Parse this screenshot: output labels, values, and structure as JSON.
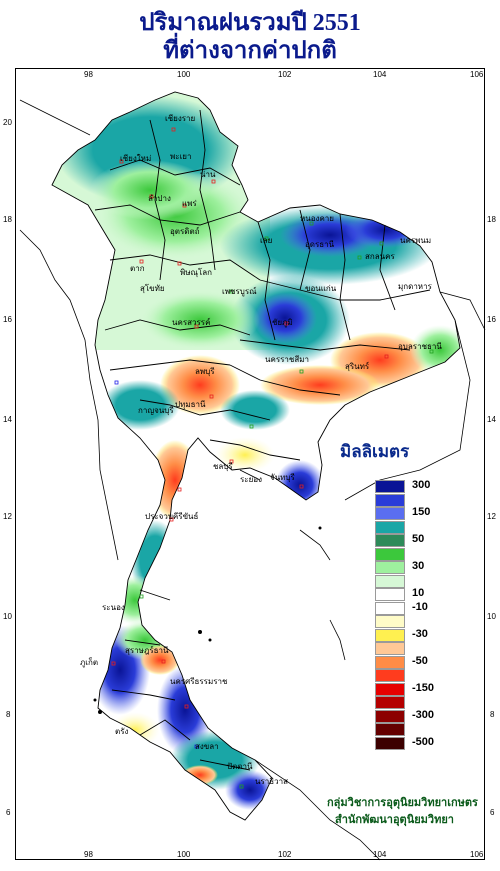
{
  "title": {
    "line1": "ปริมาณฝนรวมปี 2551",
    "line2": "ที่ต่างจากค่าปกติ"
  },
  "axes": {
    "longitude_top": [
      "98",
      "100",
      "102",
      "104",
      "106"
    ],
    "longitude_bottom": [
      "98",
      "100",
      "102",
      "104",
      "106"
    ],
    "latitude_left": [
      "20",
      "18",
      "16",
      "14",
      "12",
      "10",
      "8",
      "6"
    ],
    "latitude_right": [
      "18",
      "16",
      "14",
      "12",
      "10",
      "8",
      "6"
    ]
  },
  "legend": {
    "title": "มิลลิเมตร",
    "items": [
      {
        "label": "300",
        "color": "#0a1496"
      },
      {
        "label": "",
        "color": "#2a3cd8"
      },
      {
        "label": "150",
        "color": "#5a6ef0"
      },
      {
        "label": "",
        "color": "#1aa6a6"
      },
      {
        "label": "50",
        "color": "#2e8a5a"
      },
      {
        "label": "",
        "color": "#3cc83c"
      },
      {
        "label": "30",
        "color": "#9ef09e"
      },
      {
        "label": "",
        "color": "#d6f8d6"
      },
      {
        "label": "10",
        "color": "#ffffff"
      },
      {
        "label": "-10",
        "color": "#ffffff"
      },
      {
        "label": "",
        "color": "#fffcc8"
      },
      {
        "label": "-30",
        "color": "#fff050"
      },
      {
        "label": "",
        "color": "#ffc896"
      },
      {
        "label": "-50",
        "color": "#ff8c46"
      },
      {
        "label": "",
        "color": "#ff3c1e"
      },
      {
        "label": "-150",
        "color": "#e60000"
      },
      {
        "label": "",
        "color": "#b40000"
      },
      {
        "label": "-300",
        "color": "#8c0000"
      },
      {
        "label": "",
        "color": "#640000"
      },
      {
        "label": "-500",
        "color": "#3c0000"
      }
    ]
  },
  "credit": {
    "line1": "กลุ่มวิชาการอุตุนิยมวิทยาเกษตร",
    "line2": "สำนักพัฒนาอุตุนิยมวิทยา"
  },
  "places": [
    "เชียงใหม่",
    "เชียงราย",
    "พะเยา",
    "น่าน",
    "ลำปาง",
    "แพร่",
    "อุตรดิตถ์",
    "ตาก",
    "สุโขทัย",
    "พิษณุโลก",
    "เพชรบูรณ์",
    "นครสวรรค์",
    "หนองคาย",
    "อุดรธานี",
    "สกลนคร",
    "นครพนม",
    "เลย",
    "ขอนแก่น",
    "มุกดาหาร",
    "ชัยภูมิ",
    "นครราชสีมา",
    "สุรินทร์",
    "อุบลราชธานี",
    "ลพบุรี",
    "กาญจนบุรี",
    "ปทุมธานี",
    "ชลบุรี",
    "ระยอง",
    "จันทบุรี",
    "ประจวบคีรีขันธ์",
    "ระนอง",
    "สุราษฎร์ธานี",
    "นครศรีธรรมราช",
    "ภูเก็ต",
    "ตรัง",
    "สงขลา",
    "ปัตตานี",
    "นราธิวาส"
  ],
  "colors": {
    "title": "#0a1a8c",
    "credit": "#0a5a1a",
    "boundary": "#000000",
    "station_red": "#e61e1e",
    "station_green": "#1ea01e",
    "station_blue": "#1e1ee6"
  }
}
